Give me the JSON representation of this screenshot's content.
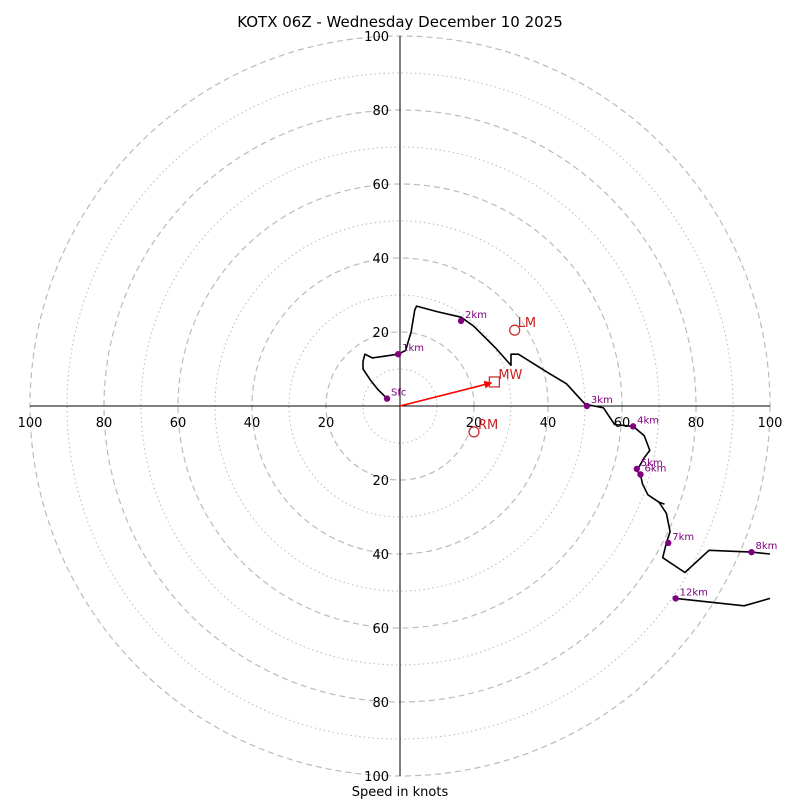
{
  "chart_data": {
    "type": "hodograph",
    "title": "KOTX 06Z - Wednesday December 10 2025",
    "xlabel": "Speed in knots",
    "units": "knots",
    "axis_range": [
      -100,
      100
    ],
    "ring_major": [
      20,
      40,
      60,
      80,
      100
    ],
    "ring_minor": [
      10,
      30,
      50,
      70,
      90
    ],
    "ticks": {
      "left": [
        {
          "value": -100,
          "label": "100"
        },
        {
          "value": -80,
          "label": "80"
        },
        {
          "value": -60,
          "label": "60"
        },
        {
          "value": -40,
          "label": "40"
        },
        {
          "value": -20,
          "label": "20"
        }
      ],
      "right": [
        {
          "value": 20,
          "label": "20"
        },
        {
          "value": 40,
          "label": "40"
        },
        {
          "value": 60,
          "label": "60"
        },
        {
          "value": 80,
          "label": "80"
        },
        {
          "value": 100,
          "label": "100"
        }
      ],
      "top": [
        {
          "value": 20,
          "label": "20"
        },
        {
          "value": 40,
          "label": "40"
        },
        {
          "value": 60,
          "label": "60"
        },
        {
          "value": 80,
          "label": "80"
        },
        {
          "value": 100,
          "label": "100"
        }
      ],
      "bottom": [
        {
          "value": -20,
          "label": "20"
        },
        {
          "value": -40,
          "label": "40"
        },
        {
          "value": -60,
          "label": "60"
        },
        {
          "value": -80,
          "label": "80"
        },
        {
          "value": -100,
          "label": "100"
        }
      ]
    },
    "trace": [
      [
        -3.5,
        2
      ],
      [
        -6,
        4.5
      ],
      [
        -8,
        7
      ],
      [
        -10,
        10
      ],
      [
        -10,
        12
      ],
      [
        -9.5,
        14
      ],
      [
        -7.5,
        13
      ],
      [
        -4,
        13.5
      ],
      [
        -0.5,
        14
      ],
      [
        1.5,
        15
      ],
      [
        3,
        20
      ],
      [
        4,
        26
      ],
      [
        4.5,
        27
      ],
      [
        10,
        25.5
      ],
      [
        16.5,
        24
      ],
      [
        20,
        21.5
      ],
      [
        23,
        18.5
      ],
      [
        26,
        15.5
      ],
      [
        30,
        11
      ],
      [
        30,
        14
      ],
      [
        32,
        14
      ],
      [
        36,
        11.5
      ],
      [
        40,
        9
      ],
      [
        45,
        6
      ],
      [
        50,
        0.5
      ],
      [
        55,
        -0.5
      ],
      [
        58,
        -5
      ],
      [
        63,
        -5.5
      ],
      [
        66,
        -8
      ],
      [
        67.5,
        -12
      ],
      [
        66,
        -14
      ],
      [
        64,
        -17.5
      ],
      [
        65,
        -18.5
      ],
      [
        65.5,
        -21
      ],
      [
        67,
        -24
      ],
      [
        70,
        -26
      ],
      [
        72,
        -29
      ],
      [
        73,
        -34
      ],
      [
        72,
        -37
      ],
      [
        71,
        -41
      ],
      [
        77,
        -45
      ],
      [
        83.5,
        -39
      ],
      [
        95,
        -39.5
      ],
      [
        100,
        -40
      ]
    ],
    "trace_segments": [
      [
        [
          70,
          -26
        ],
        [
          71.5,
          -26.5
        ]
      ],
      [
        [
          74.5,
          -52
        ],
        [
          93,
          -54
        ],
        [
          100,
          -52
        ]
      ]
    ],
    "height_markers": [
      {
        "label": "Sfc",
        "u": -3.5,
        "v": 2
      },
      {
        "label": "1km",
        "u": -0.5,
        "v": 14
      },
      {
        "label": "2km",
        "u": 16.5,
        "v": 23
      },
      {
        "label": "3km",
        "u": 50.5,
        "v": 0
      },
      {
        "label": "4km",
        "u": 63,
        "v": -5.5
      },
      {
        "label": "5km",
        "u": 64,
        "v": -17
      },
      {
        "label": "6km",
        "u": 65,
        "v": -18.5
      },
      {
        "label": "7km",
        "u": 72.5,
        "v": -37
      },
      {
        "label": "8km",
        "u": 95,
        "v": -39.5
      },
      {
        "label": "12km",
        "u": 74.5,
        "v": -52
      }
    ],
    "storm_motion": {
      "mean_wind": {
        "label": "MW",
        "u": 25.5,
        "v": 6.5
      },
      "left_mover": {
        "label": "LM",
        "u": 31,
        "v": 20.5
      },
      "right_mover": {
        "label": "RM",
        "u": 20,
        "v": -7
      }
    },
    "colors": {
      "trace": "#000000",
      "marker": "#800080",
      "storm": "#cc2222",
      "arrow": "#ff0000",
      "ring": "#bbbbbb"
    }
  }
}
